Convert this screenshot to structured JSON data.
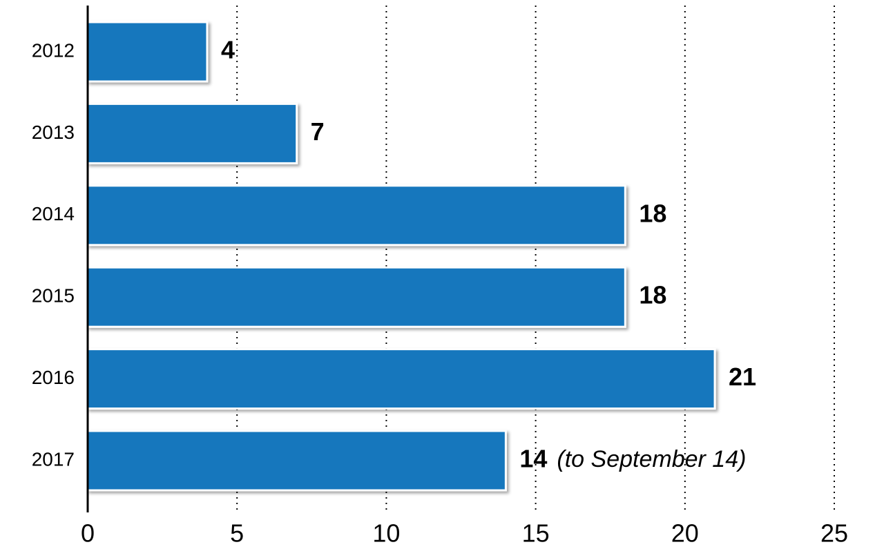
{
  "chart_data": {
    "type": "bar",
    "orientation": "horizontal",
    "categories": [
      "2012",
      "2013",
      "2014",
      "2015",
      "2016",
      "2017"
    ],
    "values": [
      4,
      7,
      18,
      18,
      21,
      14
    ],
    "color": "#1577bd",
    "annotation": "(to September 14)",
    "xlim": [
      0,
      25
    ],
    "xticks": [
      0,
      5,
      10,
      15,
      20,
      25
    ],
    "grid": true
  }
}
